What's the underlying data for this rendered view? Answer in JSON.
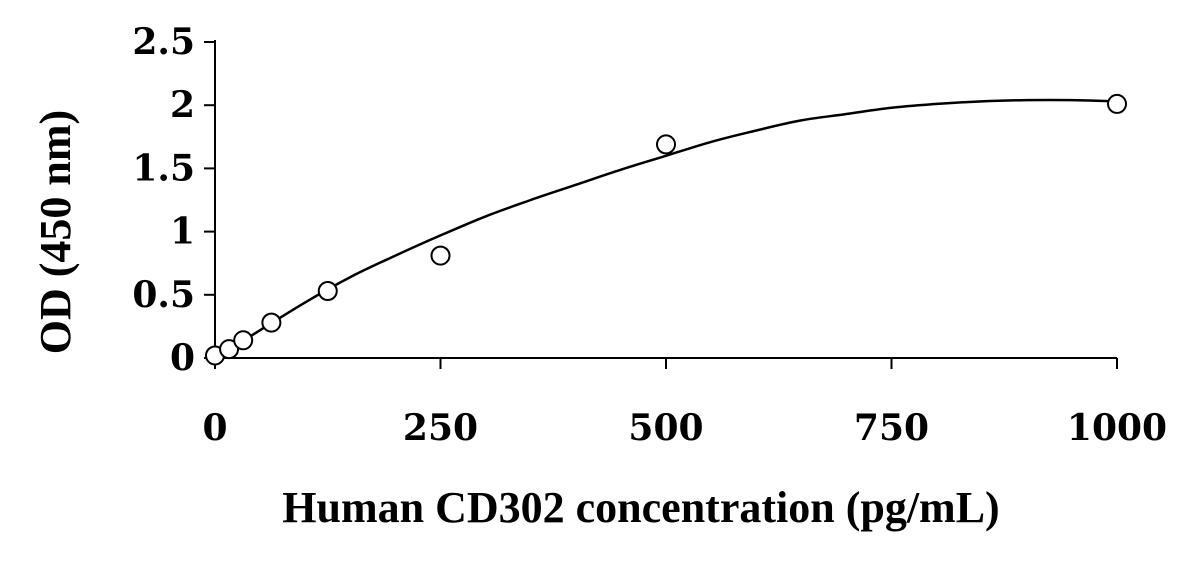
{
  "chart_data": {
    "type": "scatter",
    "title": "",
    "xlabel": "Human CD302 concentration (pg/mL)",
    "ylabel": "OD (450 nm)",
    "xlim": [
      0,
      1000
    ],
    "ylim": [
      0,
      2.5
    ],
    "x_ticks": [
      "0",
      "250",
      "500",
      "750",
      "1000"
    ],
    "y_ticks": [
      "0",
      "0.5",
      "1",
      "1.5",
      "2",
      "2.5"
    ],
    "series": [
      {
        "x": [
          0,
          15.6,
          31.25,
          62.5,
          125,
          250,
          500,
          1000
        ],
        "y": [
          0.02,
          0.07,
          0.14,
          0.28,
          0.53,
          0.81,
          1.69,
          2.01
        ]
      }
    ],
    "fit_curve": {
      "x": [
        0,
        50,
        100,
        150,
        200,
        250,
        300,
        350,
        400,
        450,
        500,
        550,
        600,
        650,
        700,
        750,
        800,
        850,
        900,
        950,
        1000
      ],
      "y": [
        0.0,
        0.22,
        0.44,
        0.64,
        0.81,
        0.97,
        1.12,
        1.25,
        1.37,
        1.49,
        1.6,
        1.71,
        1.8,
        1.88,
        1.93,
        1.98,
        2.01,
        2.03,
        2.04,
        2.04,
        2.03
      ]
    },
    "grid": false,
    "marker": "open-circle",
    "colors": {
      "line": "#000000",
      "marker_fill": "#ffffff"
    }
  }
}
